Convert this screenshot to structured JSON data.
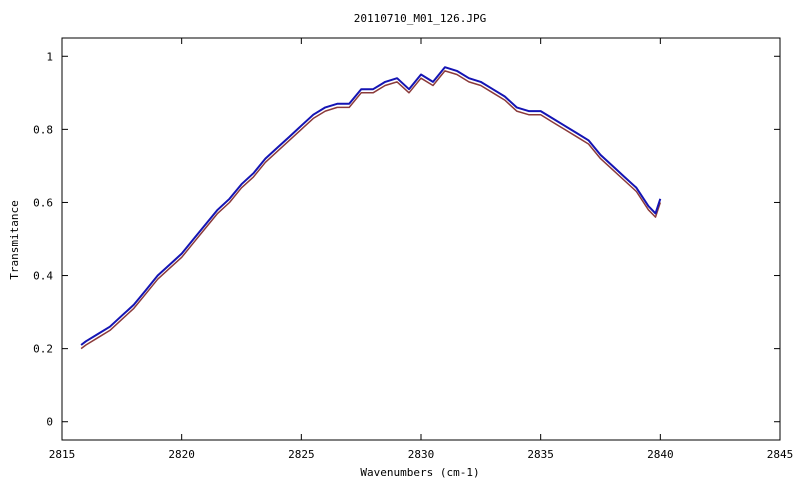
{
  "chart_data": {
    "type": "line",
    "title": "20110710_M01_126.JPG",
    "xlabel": "Wavenumbers (cm-1)",
    "ylabel": "Transmitance",
    "xlim": [
      2815,
      2845
    ],
    "ylim": [
      -0.05,
      1.05
    ],
    "xticks": [
      "2815",
      "2820",
      "2825",
      "2830",
      "2835",
      "2840",
      "2845"
    ],
    "yticks": [
      "0",
      "0.2",
      "0.4",
      "0.6",
      "0.8",
      "1"
    ],
    "grid": false,
    "series": [
      {
        "color": "#8b3a3a",
        "x": [
          2815.8,
          2816.0,
          2816.5,
          2817.0,
          2817.5,
          2818.0,
          2818.5,
          2819.0,
          2819.5,
          2820.0,
          2820.5,
          2821.0,
          2821.5,
          2822.0,
          2822.5,
          2823.0,
          2823.5,
          2824.0,
          2824.5,
          2825.0,
          2825.5,
          2826.0,
          2826.5,
          2827.0,
          2827.5,
          2828.0,
          2828.5,
          2829.0,
          2829.5,
          2830.0,
          2830.5,
          2831.0,
          2831.5,
          2832.0,
          2832.5,
          2833.0,
          2833.5,
          2834.0,
          2834.5,
          2835.0,
          2835.5,
          2836.0,
          2836.5,
          2837.0,
          2837.5,
          2838.0,
          2838.5,
          2839.0,
          2839.5,
          2839.8,
          2840.0
        ],
        "values": [
          0.2,
          0.21,
          0.23,
          0.25,
          0.28,
          0.31,
          0.35,
          0.39,
          0.42,
          0.45,
          0.49,
          0.53,
          0.57,
          0.6,
          0.64,
          0.67,
          0.71,
          0.74,
          0.77,
          0.8,
          0.83,
          0.85,
          0.86,
          0.86,
          0.9,
          0.9,
          0.92,
          0.93,
          0.9,
          0.94,
          0.92,
          0.96,
          0.95,
          0.93,
          0.92,
          0.9,
          0.88,
          0.85,
          0.84,
          0.84,
          0.82,
          0.8,
          0.78,
          0.76,
          0.72,
          0.69,
          0.66,
          0.63,
          0.58,
          0.56,
          0.6
        ]
      },
      {
        "color": "#1414b4",
        "x": [
          2815.8,
          2816.0,
          2816.5,
          2817.0,
          2817.5,
          2818.0,
          2818.5,
          2819.0,
          2819.5,
          2820.0,
          2820.5,
          2821.0,
          2821.5,
          2822.0,
          2822.5,
          2823.0,
          2823.5,
          2824.0,
          2824.5,
          2825.0,
          2825.5,
          2826.0,
          2826.5,
          2827.0,
          2827.5,
          2828.0,
          2828.5,
          2829.0,
          2829.5,
          2830.0,
          2830.5,
          2831.0,
          2831.5,
          2832.0,
          2832.5,
          2833.0,
          2833.5,
          2834.0,
          2834.5,
          2835.0,
          2835.5,
          2836.0,
          2836.5,
          2837.0,
          2837.5,
          2838.0,
          2838.5,
          2839.0,
          2839.5,
          2839.8,
          2840.0
        ],
        "values": [
          0.21,
          0.22,
          0.24,
          0.26,
          0.29,
          0.32,
          0.36,
          0.4,
          0.43,
          0.46,
          0.5,
          0.54,
          0.58,
          0.61,
          0.65,
          0.68,
          0.72,
          0.75,
          0.78,
          0.81,
          0.84,
          0.86,
          0.87,
          0.87,
          0.91,
          0.91,
          0.93,
          0.94,
          0.91,
          0.95,
          0.93,
          0.97,
          0.96,
          0.94,
          0.93,
          0.91,
          0.89,
          0.86,
          0.85,
          0.85,
          0.83,
          0.81,
          0.79,
          0.77,
          0.73,
          0.7,
          0.67,
          0.64,
          0.59,
          0.57,
          0.61
        ]
      }
    ]
  }
}
